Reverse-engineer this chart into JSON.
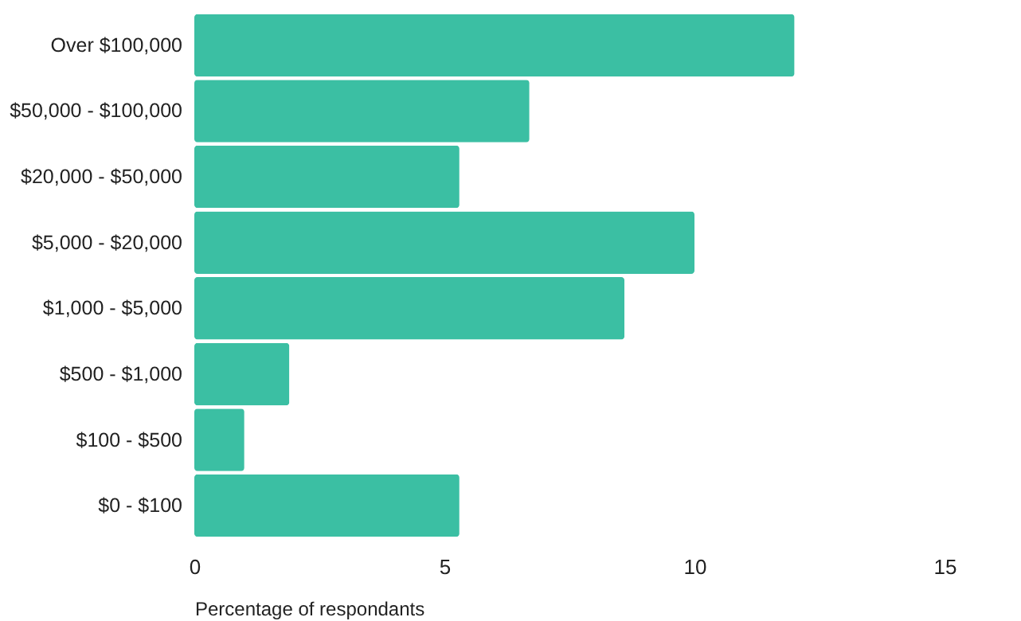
{
  "chart_data": {
    "type": "bar",
    "orientation": "horizontal",
    "xlabel": "Percentage of respondants",
    "categories": [
      "Over $100,000",
      "$50,000 - $100,000",
      "$20,000 - $50,000",
      "$5,000 - $20,000",
      "$1,000 - $5,000",
      "$500 - $1,000",
      "$100 - $500",
      "$0 - $100"
    ],
    "values": [
      12.0,
      6.7,
      5.3,
      10.0,
      8.6,
      1.9,
      1.0,
      5.3
    ],
    "color": "#3bbfa3",
    "xlim": [
      0,
      15
    ],
    "xticks": [
      0,
      5,
      10,
      15
    ],
    "grid": false
  }
}
